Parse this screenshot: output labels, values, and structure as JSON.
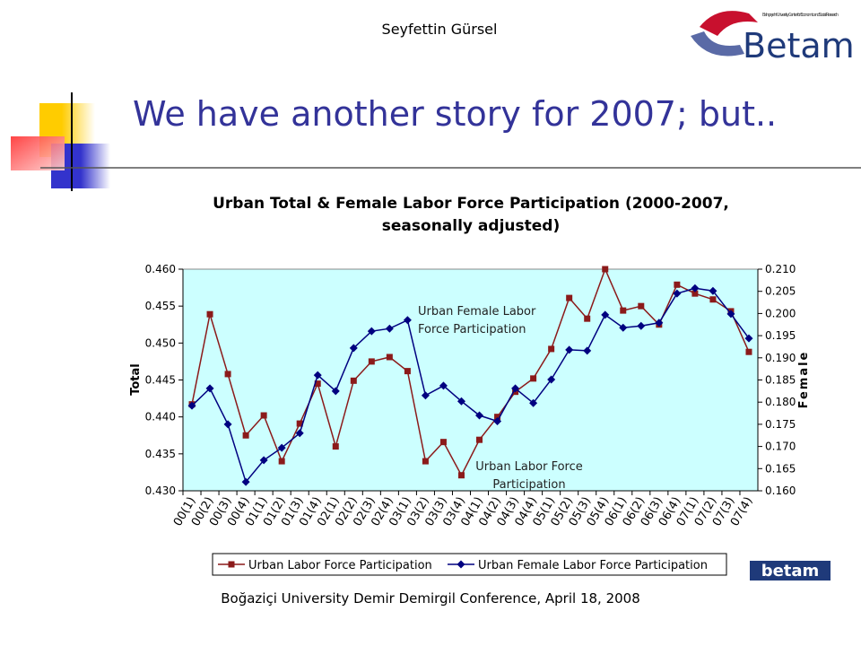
{
  "header": {
    "author": "Seyfettin Gürsel",
    "logo_text": "Betam",
    "logo_subtitle": "Bahçeşehir University Center for Economic and Social Research",
    "title": "We have another story for 2007; but.."
  },
  "chart_data": {
    "type": "line",
    "title": "Urban Total & Female Labor Force Participation (2000-2007, seasonally adjusted)",
    "y_label": "Total",
    "y2_label": "Female",
    "categories": [
      "00(1)",
      "00(2)",
      "00(3)",
      "00(4)",
      "01(1)",
      "01(2)",
      "01(3)",
      "01(4)",
      "02(1)",
      "02(2)",
      "02(3)",
      "02(4)",
      "03(1)",
      "03(2)",
      "03(3)",
      "03(4)",
      "04(1)",
      "04(2)",
      "04(3)",
      "04(4)",
      "05(1)",
      "05(2)",
      "05(3)",
      "05(4)",
      "06(1)",
      "06(2)",
      "06(3)",
      "06(4)",
      "07(1)",
      "07(2)",
      "07(3)",
      "07(4)"
    ],
    "series": [
      {
        "name": "Urban Labor Force Participation",
        "color": "#8b1a1a",
        "marker": "square",
        "values": [
          0.4417,
          0.4539,
          0.4458,
          0.4375,
          0.4402,
          0.434,
          0.4391,
          0.4445,
          0.436,
          0.4449,
          0.4475,
          0.4481,
          0.4462,
          0.434,
          0.4366,
          0.4321,
          0.4369,
          0.44,
          0.4434,
          0.4452,
          0.4492,
          0.4561,
          0.4533,
          0.46,
          0.4544,
          0.455,
          0.4525,
          0.4579,
          0.4567,
          0.4559,
          0.4543,
          0.4488
        ]
      },
      {
        "name": "Urban Female Labor Force Participation",
        "color": "#000080",
        "marker": "diamond",
        "axis": "y2",
        "values": [
          0.1792,
          0.1831,
          0.175,
          0.162,
          0.1669,
          0.1697,
          0.173,
          0.1861,
          0.1825,
          0.1922,
          0.196,
          0.1966,
          0.1985,
          0.1815,
          0.1837,
          0.1802,
          0.177,
          0.1757,
          0.1831,
          0.1798,
          0.1851,
          0.1918,
          0.1916,
          0.1997,
          0.1968,
          0.1972,
          0.1979,
          0.2045,
          0.2057,
          0.2051,
          0.1999,
          0.1944
        ]
      }
    ],
    "ylim": [
      0.43,
      0.46
    ],
    "yticks": [
      {
        "value": 0.43,
        "label": "0.430"
      },
      {
        "value": 0.435,
        "label": "0.435"
      },
      {
        "value": 0.44,
        "label": "0.440"
      },
      {
        "value": 0.445,
        "label": "0.445"
      },
      {
        "value": 0.45,
        "label": "0.450"
      },
      {
        "value": 0.455,
        "label": "0.455"
      },
      {
        "value": 0.46,
        "label": "0.460"
      }
    ],
    "y2lim": [
      0.16,
      0.21
    ],
    "y2ticks": [
      {
        "value": 0.16,
        "label": "0.160"
      },
      {
        "value": 0.165,
        "label": "0.165"
      },
      {
        "value": 0.17,
        "label": "0.170"
      },
      {
        "value": 0.175,
        "label": "0.175"
      },
      {
        "value": 0.18,
        "label": "0.180"
      },
      {
        "value": 0.185,
        "label": "0.185"
      },
      {
        "value": 0.19,
        "label": "0.190"
      },
      {
        "value": 0.195,
        "label": "0.195"
      },
      {
        "value": 0.2,
        "label": "0.200"
      },
      {
        "value": 0.205,
        "label": "0.205"
      },
      {
        "value": 0.21,
        "label": "0.210"
      }
    ],
    "annotations": [
      "Urban Female Labor Force Participation",
      "Urban Labor Force Participation"
    ],
    "plot_background": "#ccffff",
    "legend": "bottom"
  },
  "footer": {
    "text": "Boğaziçi University Demir Demirgil Conference, April 18, 2008",
    "logo": "betam"
  }
}
